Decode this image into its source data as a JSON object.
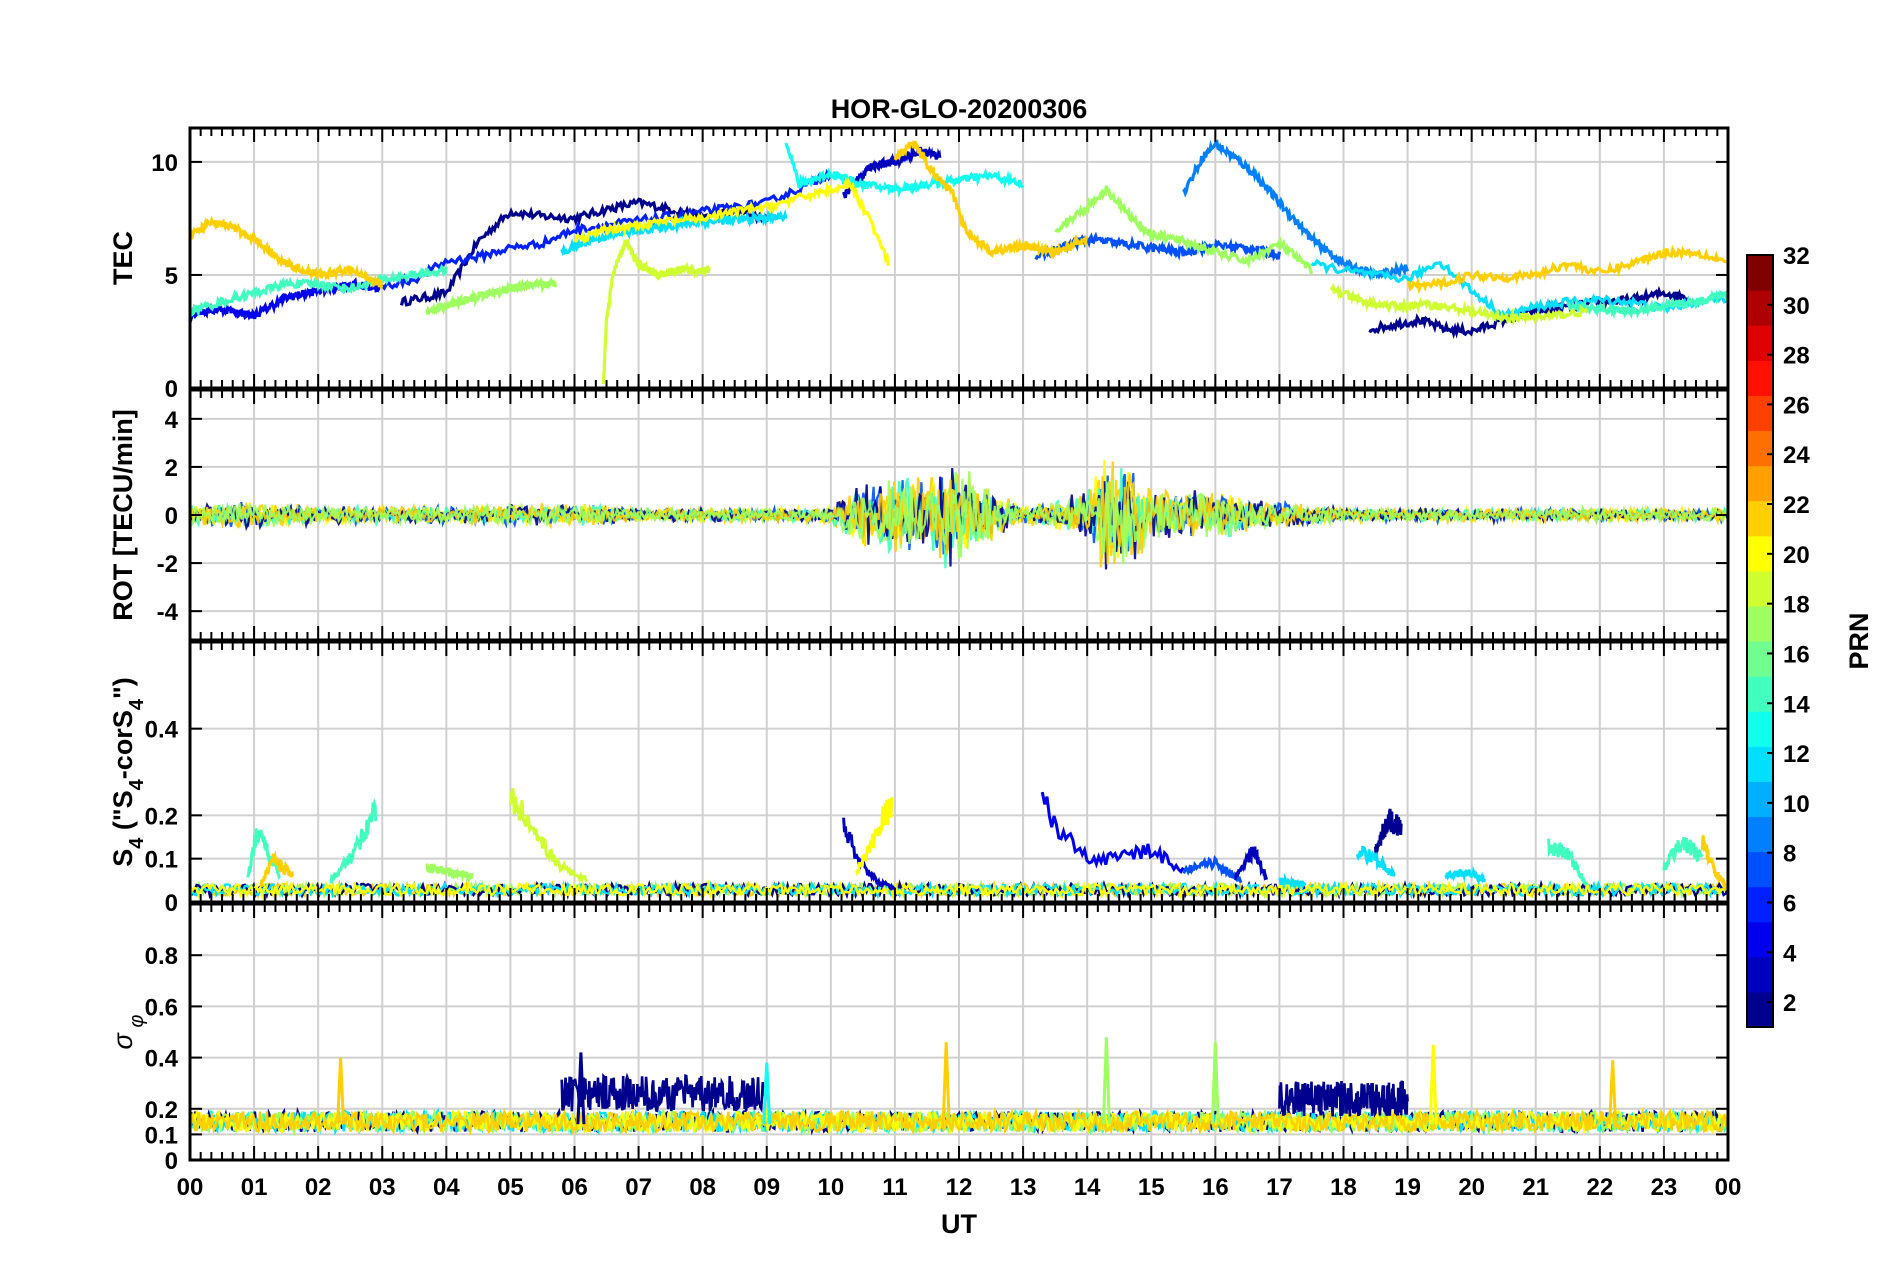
{
  "chart_data": {
    "type": "line",
    "title": "HOR-GLO-20200306",
    "xlabel": "UT",
    "xlim": [
      0,
      24
    ],
    "x_tick_labels": [
      "00",
      "01",
      "02",
      "03",
      "04",
      "05",
      "06",
      "07",
      "08",
      "09",
      "10",
      "11",
      "12",
      "13",
      "14",
      "15",
      "16",
      "17",
      "18",
      "19",
      "20",
      "21",
      "22",
      "23",
      "00"
    ],
    "grid": true,
    "panels": [
      {
        "id": "tec",
        "ylabel": "TEC",
        "ylim": [
          0,
          11.5
        ],
        "yticks": [
          0,
          5,
          10
        ],
        "series": [
          {
            "prn": 2,
            "x": [
              3.3,
              4.0,
              4.5,
              5.0,
              5.5,
              6.0,
              6.5,
              7.0,
              7.5,
              8.0,
              8.5,
              9.0
            ],
            "y": [
              3.8,
              4.2,
              6.5,
              7.8,
              7.6,
              7.5,
              7.9,
              8.2,
              7.9,
              7.6,
              7.8,
              7.5
            ]
          },
          {
            "prn": 3,
            "x": [
              10.2,
              10.6,
              11.0,
              11.4,
              11.7
            ],
            "y": [
              8.5,
              9.8,
              10.0,
              10.5,
              10.2
            ]
          },
          {
            "prn": 2,
            "x": [
              18.4,
              18.8,
              19.2,
              19.6,
              20.0,
              20.5,
              21.0,
              21.5,
              22.0,
              22.5,
              23.0,
              23.4
            ],
            "y": [
              2.6,
              2.8,
              3.0,
              2.6,
              2.5,
              3.0,
              3.4,
              3.6,
              3.8,
              3.9,
              4.2,
              4.0
            ]
          },
          {
            "prn": 5,
            "x": [
              0,
              0.5,
              1.0,
              1.5,
              2.0,
              2.5,
              3.0
            ],
            "y": [
              3.3,
              3.5,
              3.2,
              4.0,
              4.3,
              4.6,
              4.4
            ]
          },
          {
            "prn": 6,
            "x": [
              3.0,
              3.5,
              4.0,
              4.5,
              5.0,
              5.5,
              6.0,
              6.5,
              7.0,
              7.5,
              8.0,
              8.5,
              9.0,
              9.5,
              10.0
            ],
            "y": [
              4.5,
              4.8,
              5.6,
              5.8,
              6.2,
              6.4,
              7.0,
              7.2,
              7.4,
              7.6,
              7.8,
              8.0,
              8.2,
              8.8,
              9.5
            ]
          },
          {
            "prn": 7,
            "x": [
              13.2,
              13.6,
              14.0,
              14.5,
              15.0,
              15.5,
              16.0,
              16.5,
              17.0
            ],
            "y": [
              5.8,
              6.2,
              6.6,
              6.4,
              6.2,
              6.0,
              6.3,
              6.2,
              5.9
            ]
          },
          {
            "prn": 9,
            "x": [
              15.5,
              15.8,
              16.0,
              16.3,
              16.6,
              17.0,
              17.5,
              18.0,
              18.5,
              19.0
            ],
            "y": [
              8.6,
              10.2,
              10.8,
              10.2,
              9.5,
              8.2,
              6.6,
              5.5,
              5.0,
              5.3
            ]
          },
          {
            "prn": 11,
            "x": [
              5.8,
              6.3,
              6.8,
              7.3,
              7.8,
              8.3,
              8.8,
              9.3
            ],
            "y": [
              6.0,
              6.6,
              6.9,
              7.1,
              7.3,
              7.4,
              7.5,
              7.6
            ]
          },
          {
            "prn": 12,
            "x": [
              17.5,
              18.0,
              18.5,
              19.0,
              19.5,
              20.0,
              20.5,
              21.0,
              21.5,
              22.0,
              22.5,
              23.0,
              23.5,
              24.0
            ],
            "y": [
              5.5,
              5.2,
              5.0,
              4.8,
              5.6,
              4.3,
              3.2,
              3.6,
              3.8,
              3.9,
              3.8,
              3.5,
              3.8,
              4.0
            ]
          },
          {
            "prn": 13,
            "x": [
              9.3,
              9.5,
              9.7,
              10.0,
              10.5,
              11.0,
              11.5,
              12.0,
              12.5,
              13.0
            ],
            "y": [
              11.0,
              9.0,
              9.2,
              9.5,
              9.0,
              8.8,
              9.0,
              9.2,
              9.4,
              9.0
            ]
          },
          {
            "prn": 14,
            "x": [
              0,
              0.5,
              1.0,
              1.5,
              2.0,
              2.5,
              3.0,
              3.5,
              4.0
            ],
            "y": [
              3.4,
              3.8,
              4.2,
              4.6,
              4.6,
              4.4,
              4.8,
              5.0,
              5.2
            ]
          },
          {
            "prn": 15,
            "x": [
              21.5,
              22.0,
              22.5,
              23.0,
              23.5,
              24.0
            ],
            "y": [
              3.6,
              3.5,
              3.4,
              3.6,
              3.8,
              4.2
            ]
          },
          {
            "prn": 17,
            "x": [
              3.7,
              4.2,
              4.7,
              5.2,
              5.7
            ],
            "y": [
              3.4,
              3.8,
              4.2,
              4.5,
              4.6
            ]
          },
          {
            "prn": 17,
            "x": [
              13.5,
              14.0,
              14.3,
              14.7,
              15.0,
              15.5,
              16.0,
              16.5,
              17.0,
              17.5
            ],
            "y": [
              7.0,
              8.0,
              8.8,
              7.5,
              6.8,
              6.5,
              6.0,
              5.6,
              6.4,
              5.2
            ]
          },
          {
            "prn": 18,
            "x": [
              6.45,
              6.5,
              6.6,
              6.8,
              7.0,
              7.3,
              7.6,
              8.1
            ],
            "y": [
              0.2,
              3.0,
              5.0,
              6.5,
              5.5,
              5.0,
              5.2,
              5.2
            ]
          },
          {
            "prn": 19,
            "x": [
              17.8,
              18.3,
              18.8,
              19.3,
              19.8,
              20.3,
              20.8,
              21.3,
              21.8
            ],
            "y": [
              4.4,
              3.8,
              3.6,
              3.7,
              3.5,
              3.2,
              3.1,
              3.2,
              3.4
            ]
          },
          {
            "prn": 20,
            "x": [
              6.0,
              6.5,
              7.0,
              7.5,
              8.0,
              8.5,
              9.0,
              9.5,
              10.0,
              10.3,
              10.6,
              10.9
            ],
            "y": [
              6.5,
              7.0,
              7.2,
              7.4,
              7.5,
              7.8,
              8.0,
              8.4,
              8.8,
              9.0,
              7.5,
              5.5
            ]
          },
          {
            "prn": 21,
            "x": [
              19.0,
              19.5,
              20.0,
              20.5,
              21.0,
              21.5,
              22.0,
              22.5,
              23.0,
              23.5,
              24.0
            ],
            "y": [
              4.5,
              4.6,
              5.0,
              4.9,
              5.0,
              5.5,
              5.1,
              5.5,
              6.0,
              6.0,
              5.6
            ]
          },
          {
            "prn": 22,
            "x": [
              0,
              0.3,
              0.6,
              1.0,
              1.5,
              2.0,
              2.5,
              3.0
            ],
            "y": [
              6.7,
              7.3,
              7.2,
              6.6,
              5.5,
              5.0,
              5.2,
              4.6
            ]
          },
          {
            "prn": 22,
            "x": [
              11.0,
              11.3,
              11.6,
              11.9,
              12.1,
              12.5,
              13.0,
              13.5,
              14.0
            ],
            "y": [
              10.2,
              10.8,
              9.5,
              8.6,
              7.0,
              6.0,
              6.3,
              6.0,
              6.6
            ]
          }
        ]
      },
      {
        "id": "rot",
        "ylabel": "ROT [TECU/min]",
        "ylim": [
          -5.2,
          5.2
        ],
        "yticks": [
          -4,
          -2,
          0,
          2,
          4
        ],
        "envelope": {
          "x": [
            0,
            1,
            2,
            3,
            4,
            5,
            6,
            7,
            8,
            9,
            10,
            10.5,
            11,
            11.5,
            11.8,
            12.2,
            12.6,
            13,
            13.5,
            14,
            14.3,
            14.7,
            15,
            15.5,
            16,
            16.5,
            17,
            18,
            19,
            20,
            21,
            22,
            23,
            24
          ],
          "amp": [
            0.5,
            0.6,
            0.4,
            0.4,
            0.4,
            0.5,
            0.5,
            0.3,
            0.3,
            0.3,
            0.4,
            1.5,
            1.8,
            1.6,
            2.5,
            1.8,
            1.0,
            0.4,
            0.6,
            1.2,
            2.6,
            2.2,
            1.2,
            1.0,
            1.2,
            0.8,
            0.6,
            0.3,
            0.3,
            0.3,
            0.3,
            0.3,
            0.3,
            0.3
          ]
        }
      },
      {
        "id": "s4",
        "ylabel": "S4 (\"S4-corS4\")",
        "ylim": [
          0,
          0.6
        ],
        "yticks": [
          0,
          0.1,
          0.2,
          0.4
        ],
        "baseline": 0.03,
        "events": [
          {
            "prn": 14,
            "x": [
              0.9,
              1.05,
              1.2,
              1.4
            ],
            "y": [
              0.05,
              0.17,
              0.12,
              0.06
            ]
          },
          {
            "prn": 22,
            "x": [
              1.1,
              1.3,
              1.6
            ],
            "y": [
              0.04,
              0.1,
              0.06
            ]
          },
          {
            "prn": 15,
            "x": [
              2.2,
              2.5,
              2.8,
              2.9
            ],
            "y": [
              0.05,
              0.1,
              0.18,
              0.21
            ]
          },
          {
            "prn": 17,
            "x": [
              3.7,
              4.0,
              4.4
            ],
            "y": [
              0.08,
              0.07,
              0.06
            ]
          },
          {
            "prn": 18,
            "x": [
              5.0,
              5.4,
              5.8,
              6.2
            ],
            "y": [
              0.25,
              0.15,
              0.08,
              0.05
            ]
          },
          {
            "prn": 3,
            "x": [
              10.2,
              10.4,
              10.7,
              11.0
            ],
            "y": [
              0.19,
              0.1,
              0.05,
              0.03
            ]
          },
          {
            "prn": 20,
            "x": [
              10.4,
              10.6,
              10.8,
              10.95
            ],
            "y": [
              0.07,
              0.12,
              0.19,
              0.22
            ]
          },
          {
            "prn": 5,
            "x": [
              13.3,
              13.6,
              14.0,
              14.5,
              15.0,
              15.5
            ],
            "y": [
              0.23,
              0.16,
              0.1,
              0.1,
              0.12,
              0.07
            ]
          },
          {
            "prn": 7,
            "x": [
              15.5,
              16.0,
              16.4
            ],
            "y": [
              0.07,
              0.09,
              0.05
            ]
          },
          {
            "prn": 3,
            "x": [
              16.3,
              16.6,
              16.8
            ],
            "y": [
              0.06,
              0.12,
              0.05
            ]
          },
          {
            "prn": 11,
            "x": [
              17.0,
              17.4
            ],
            "y": [
              0.05,
              0.04
            ]
          },
          {
            "prn": 2,
            "x": [
              18.5,
              18.7,
              18.9
            ],
            "y": [
              0.12,
              0.19,
              0.17
            ]
          },
          {
            "prn": 12,
            "x": [
              18.2,
              18.5,
              18.8
            ],
            "y": [
              0.12,
              0.1,
              0.06
            ]
          },
          {
            "prn": 12,
            "x": [
              19.6,
              19.9,
              20.2
            ],
            "y": [
              0.06,
              0.07,
              0.05
            ]
          },
          {
            "prn": 14,
            "x": [
              21.2,
              21.5,
              21.8
            ],
            "y": [
              0.13,
              0.11,
              0.04
            ]
          },
          {
            "prn": 15,
            "x": [
              23.0,
              23.3,
              23.6
            ],
            "y": [
              0.08,
              0.14,
              0.1
            ]
          },
          {
            "prn": 22,
            "x": [
              23.6,
              23.8,
              24.0
            ],
            "y": [
              0.14,
              0.07,
              0.03
            ]
          }
        ]
      },
      {
        "id": "sigma",
        "ylabel": "σ φ",
        "ylim": [
          0,
          1
        ],
        "yticks": [
          0,
          0.1,
          0.2,
          0.4,
          0.6,
          0.8
        ],
        "baseline": 0.15,
        "bands": [
          {
            "prn": 2,
            "x": [
              5.8,
              9.0
            ],
            "level": 0.26
          },
          {
            "prn": 2,
            "x": [
              17.0,
              19.0
            ],
            "level": 0.24
          }
        ],
        "spikes": [
          {
            "prn": 22,
            "x": 2.35,
            "y": 0.4
          },
          {
            "prn": 22,
            "x": 11.8,
            "y": 0.46
          },
          {
            "prn": 17,
            "x": 14.3,
            "y": 0.48
          },
          {
            "prn": 17,
            "x": 16.0,
            "y": 0.46
          },
          {
            "prn": 20,
            "x": 19.4,
            "y": 0.45
          },
          {
            "prn": 22,
            "x": 22.2,
            "y": 0.39
          },
          {
            "prn": 13,
            "x": 9.0,
            "y": 0.38
          },
          {
            "prn": 2,
            "x": 6.1,
            "y": 0.42
          }
        ]
      }
    ],
    "colorbar": {
      "label": "PRN",
      "range": [
        1,
        32
      ],
      "ticks": [
        2,
        4,
        6,
        8,
        10,
        12,
        14,
        16,
        18,
        20,
        22,
        24,
        26,
        28,
        30,
        32
      ],
      "colormap": "jet",
      "colors": [
        "#00008f",
        "#0000bf",
        "#0000ef",
        "#0020ff",
        "#0050ff",
        "#0080ff",
        "#00afff",
        "#00dfff",
        "#10ffef",
        "#40ffbf",
        "#70ff8f",
        "#9fff60",
        "#cfff30",
        "#ffff00",
        "#ffcf00",
        "#ff9f00",
        "#ff7000",
        "#ff4000",
        "#ff1000",
        "#df0000",
        "#af0000",
        "#800000"
      ]
    }
  }
}
